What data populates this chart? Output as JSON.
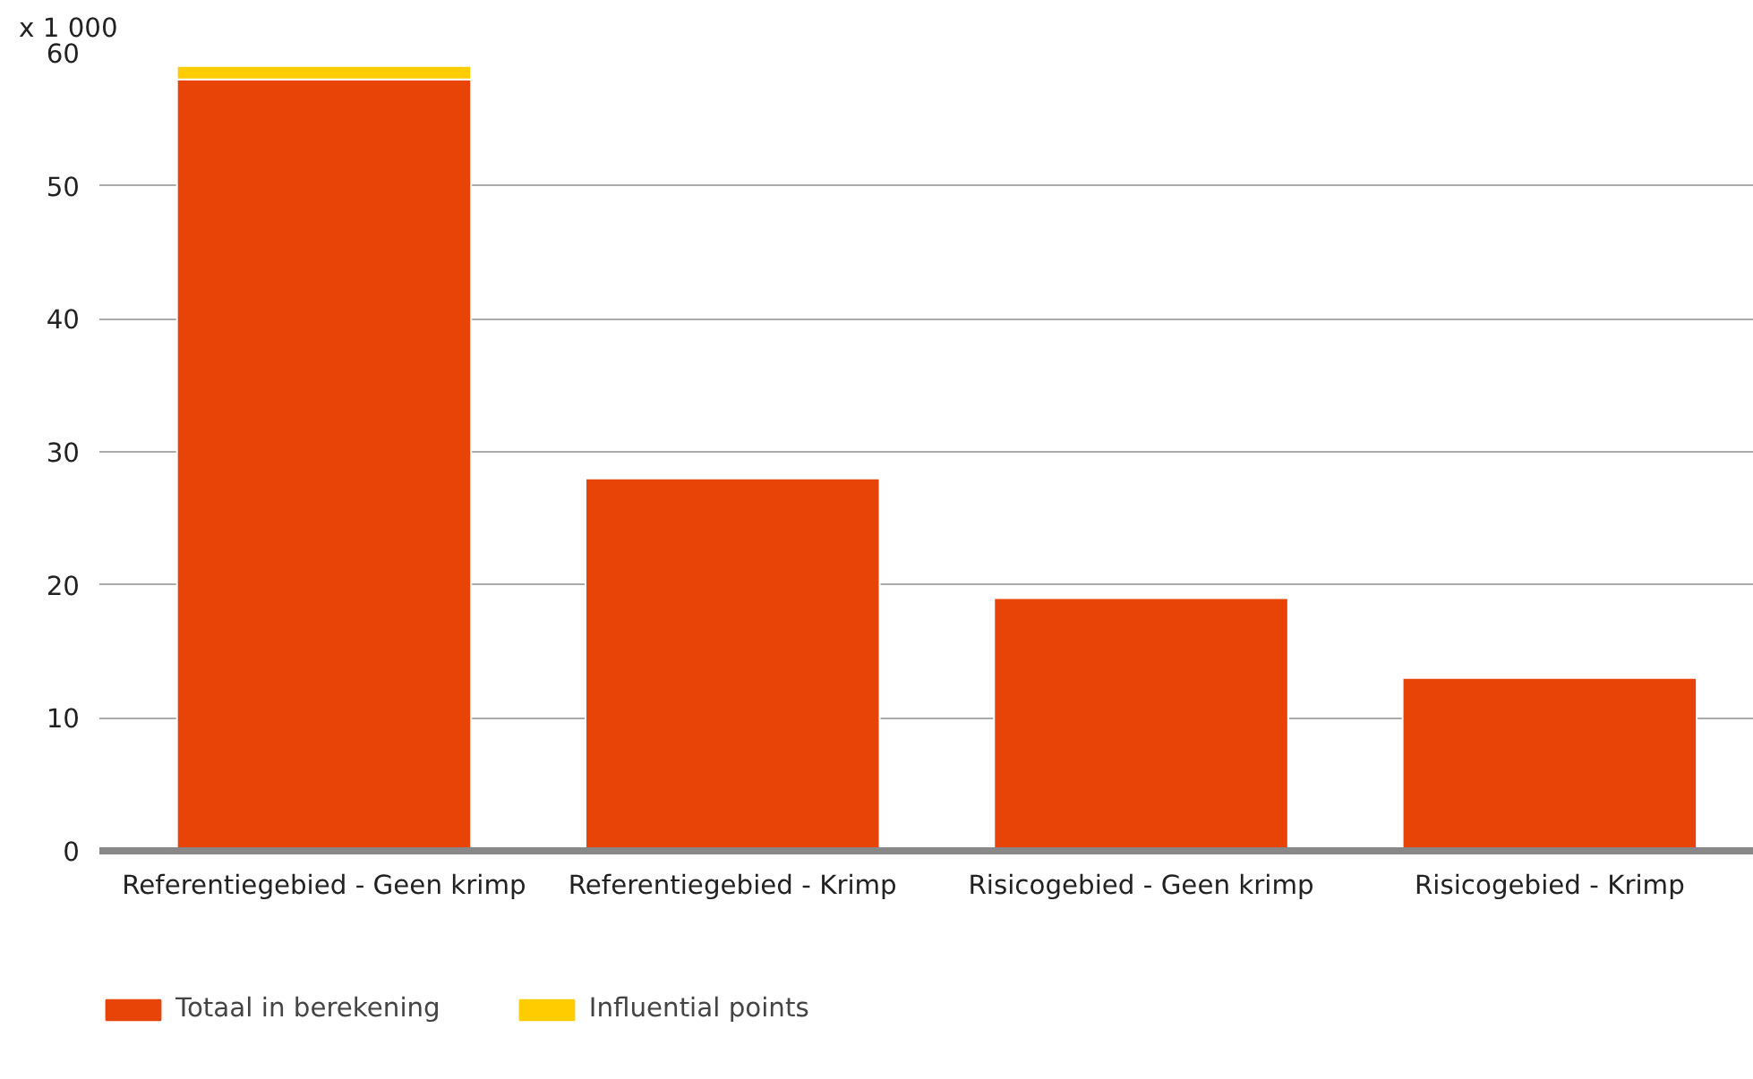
{
  "chart_data": {
    "type": "bar",
    "ylabel": "x 1 000",
    "stacked": true,
    "categories": [
      "Referentiegebied - Geen krimp",
      "Referentiegebied - Krimp",
      "Risicogebied - Geen krimp",
      "Risicogebied - Krimp"
    ],
    "series": [
      {
        "name": "Totaal in berekening",
        "color": "#e84408",
        "values": [
          58,
          28,
          19,
          13
        ]
      },
      {
        "name": "Influential points",
        "color": "#ffcc00",
        "values": [
          1,
          null,
          null,
          null
        ]
      }
    ],
    "ylim": [
      0,
      60
    ],
    "yticks": [
      0,
      10,
      20,
      30,
      40,
      50,
      60
    ],
    "grid": "y",
    "legend": "bottom left"
  }
}
